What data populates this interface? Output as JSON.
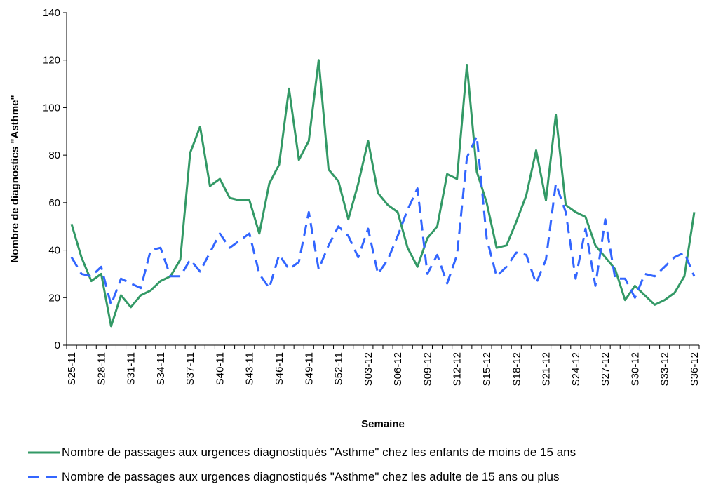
{
  "chart_data": {
    "type": "line",
    "ylabel": "Nombre de diagnostics \"Asthme\"",
    "xlabel": "Semaine",
    "categories": [
      "S25-11",
      null,
      null,
      "S28-11",
      null,
      null,
      "S31-11",
      null,
      null,
      "S34-11",
      null,
      null,
      "S37-11",
      null,
      null,
      "S40-11",
      null,
      null,
      "S43-11",
      null,
      null,
      "S46-11",
      null,
      null,
      "S49-11",
      null,
      null,
      "S52-11",
      null,
      null,
      "S03-12",
      null,
      null,
      "S06-12",
      null,
      null,
      "S09-12",
      null,
      null,
      "S12-12",
      null,
      null,
      "S15-12",
      null,
      null,
      "S18-12",
      null,
      null,
      "S21-12",
      null,
      null,
      "S24-12",
      null,
      null,
      "S27-12",
      null,
      null,
      "S30-12",
      null,
      null,
      "S33-12",
      null,
      null,
      "S36-12"
    ],
    "series": [
      {
        "name": "Nombre de passages aux urgences diagnostiqués \"Asthme\" chez les enfants de moins de 15 ans",
        "color": "#339966",
        "dash": false,
        "values": [
          51,
          37,
          27,
          30,
          8,
          21,
          16,
          21,
          23,
          27,
          29,
          36,
          81,
          92,
          67,
          70,
          62,
          61,
          61,
          47,
          68,
          76,
          108,
          78,
          86,
          120,
          74,
          69,
          53,
          68,
          86,
          64,
          59,
          56,
          41,
          33,
          45,
          50,
          72,
          70,
          118,
          73,
          60,
          41,
          42,
          52,
          63,
          82,
          61,
          97,
          59,
          56,
          54,
          42,
          37,
          32,
          19,
          25,
          21,
          17,
          19,
          22,
          29,
          56
        ]
      },
      {
        "name": "Nombre de passages aux urgences diagnostiqués \"Asthme\" chez les adulte de 15 ans ou plus",
        "color": "#3366ff",
        "dash": true,
        "values": [
          37,
          30,
          29,
          33,
          17,
          28,
          26,
          24,
          40,
          41,
          29,
          29,
          36,
          31,
          39,
          47,
          41,
          44,
          47,
          30,
          24,
          38,
          32,
          35,
          56,
          32,
          42,
          50,
          46,
          37,
          49,
          30,
          36,
          46,
          57,
          66,
          30,
          38,
          26,
          38,
          79,
          88,
          45,
          29,
          33,
          39,
          38,
          26,
          36,
          68,
          56,
          28,
          49,
          25,
          53,
          28,
          28,
          20,
          30,
          29,
          33,
          37,
          39,
          29
        ]
      }
    ],
    "ylim": [
      0,
      140
    ],
    "yticks": [
      0,
      20,
      40,
      60,
      80,
      100,
      120,
      140
    ],
    "grid": false
  }
}
